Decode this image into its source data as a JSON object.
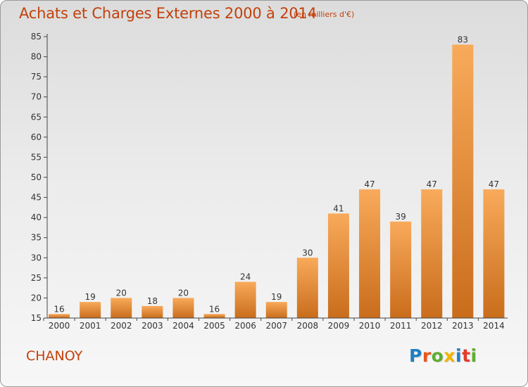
{
  "header": {
    "title": "Achats et Charges Externes 2000 à 2014",
    "subtitle": "(en milliers d'€)"
  },
  "footer": {
    "commune": "CHANOY",
    "logo_text": "Proxiti"
  },
  "colors": {
    "accent": "#c2410c",
    "bar_light": "#f8aa5a",
    "bar_dark": "#c96d1c",
    "logo_letters": [
      "#1d7fc4",
      "#e9561b",
      "#5fae2e",
      "#f0b400",
      "#1d7fc4",
      "#e33d2a",
      "#5fae2e"
    ]
  },
  "chart_data": {
    "type": "bar",
    "categories": [
      "2000",
      "2001",
      "2002",
      "2003",
      "2004",
      "2005",
      "2006",
      "2007",
      "2008",
      "2009",
      "2010",
      "2011",
      "2012",
      "2013",
      "2014"
    ],
    "values": [
      16,
      19,
      20,
      18,
      20,
      16,
      24,
      19,
      30,
      41,
      47,
      39,
      47,
      83,
      47
    ],
    "title": "Achats et Charges Externes 2000 à 2014",
    "ylim": [
      15,
      85
    ],
    "yticks": [
      15,
      20,
      25,
      30,
      35,
      40,
      45,
      50,
      55,
      60,
      65,
      70,
      75,
      80,
      85
    ],
    "grid": false,
    "legend": "none"
  }
}
